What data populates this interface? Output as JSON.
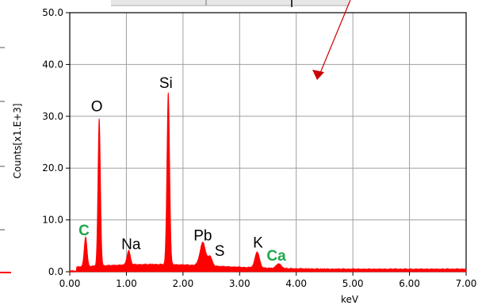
{
  "chart_data": {
    "type": "area",
    "xlabel": "keV",
    "ylabel": "Counts[x1.E+3]",
    "xlim": [
      0.0,
      7.0
    ],
    "ylim": [
      0.0,
      50.0
    ],
    "x_ticks": [
      "0.00",
      "1.00",
      "2.00",
      "3.00",
      "4.00",
      "5.00",
      "6.00",
      "7.00"
    ],
    "y_ticks": [
      "0.0",
      "10.0",
      "20.0",
      "30.0",
      "40.0",
      "50.0"
    ],
    "grid": true,
    "series_color": "#ff0000",
    "annotation_color": "#cc0000",
    "green_label_color": "#1fa64a",
    "peaks": [
      {
        "label": "C",
        "energy": 0.28,
        "height": 5.8,
        "width": 0.025,
        "green": true
      },
      {
        "label": "O",
        "energy": 0.52,
        "height": 28.5,
        "width": 0.022,
        "green": false
      },
      {
        "label": "Na",
        "energy": 1.04,
        "height": 2.8,
        "width": 0.03,
        "green": false
      },
      {
        "label": "Si",
        "energy": 1.74,
        "height": 33.3,
        "width": 0.024,
        "green": false
      },
      {
        "label": "Pb",
        "energy": 2.35,
        "height": 4.5,
        "width": 0.05,
        "green": false
      },
      {
        "label": "S",
        "energy": 2.48,
        "height": 1.8,
        "width": 0.035,
        "green": false
      },
      {
        "label": "K",
        "energy": 3.31,
        "height": 3.1,
        "width": 0.04,
        "green": false
      },
      {
        "label": "Ca",
        "energy": 3.69,
        "height": 0.9,
        "width": 0.045,
        "green": true
      }
    ]
  }
}
